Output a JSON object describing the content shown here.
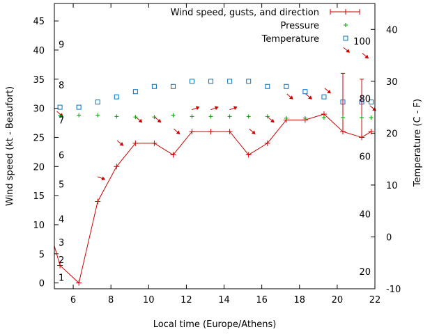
{
  "chart_data": {
    "type": "line",
    "xlabel": "Local time (Europe/Athens)",
    "ylabel_left": "Wind speed (kt - Beaufort)",
    "ylabel_right": "Temperature (C - F)",
    "xlim": [
      5,
      22
    ],
    "ylim_left": [
      -1,
      48
    ],
    "ylim_right": [
      -10,
      45
    ],
    "x_ticks": [
      6,
      8,
      10,
      12,
      14,
      16,
      18,
      20,
      22
    ],
    "y_left_ticks": [
      0,
      5,
      10,
      15,
      20,
      25,
      30,
      35,
      40,
      45
    ],
    "y_right_ticks": [
      -10,
      0,
      10,
      20,
      30,
      40
    ],
    "beaufort_labels": [
      {
        "label": "1",
        "value": 1
      },
      {
        "label": "2",
        "value": 4
      },
      {
        "label": "3",
        "value": 7
      },
      {
        "label": "4",
        "value": 11
      },
      {
        "label": "5",
        "value": 17
      },
      {
        "label": "6",
        "value": 22
      },
      {
        "label": "7",
        "value": 28
      },
      {
        "label": "8",
        "value": 34
      },
      {
        "label": "9",
        "value": 41
      }
    ],
    "fahrenheit_labels": [
      {
        "label": "20",
        "value": 20
      },
      {
        "label": "40",
        "value": 40
      },
      {
        "label": "60",
        "value": 60
      },
      {
        "label": "80",
        "value": 80
      },
      {
        "label": "100",
        "value": 100
      }
    ],
    "legend": [
      {
        "name": "Wind speed, gusts, and direction",
        "color": "#cc0000",
        "marker": "plus-line"
      },
      {
        "name": "Pressure",
        "color": "#00a000",
        "marker": "plus"
      },
      {
        "name": "Temperature",
        "color": "#0070c0",
        "marker": "square"
      }
    ],
    "series": [
      {
        "name": "Wind speed, gusts, and direction",
        "color": "#cc0000",
        "x": [
          4.5,
          5.3,
          6.3,
          7.3,
          8.3,
          9.3,
          10.3,
          11.3,
          12.3,
          13.3,
          14.3,
          15.3,
          16.3,
          17.3,
          18.3,
          19.3,
          20.3,
          21.3,
          21.8
        ],
        "y": [
          12,
          3,
          0,
          14,
          20,
          24,
          24,
          22,
          26,
          26,
          26,
          22,
          24,
          28,
          28,
          29,
          26,
          25,
          26
        ],
        "gusts": [
          {
            "x": 20.3,
            "y": 36
          },
          {
            "x": 21.3,
            "y": 35
          }
        ],
        "arrows": [
          {
            "x": 7.5,
            "y": 18,
            "angle": 20
          },
          {
            "x": 8.5,
            "y": 24,
            "angle": 40
          },
          {
            "x": 9.5,
            "y": 28,
            "angle": 40
          },
          {
            "x": 10.5,
            "y": 28,
            "angle": 40
          },
          {
            "x": 11.5,
            "y": 26,
            "angle": 40
          },
          {
            "x": 12.5,
            "y": 30,
            "angle": -20
          },
          {
            "x": 13.5,
            "y": 30,
            "angle": -20
          },
          {
            "x": 14.5,
            "y": 30,
            "angle": -20
          },
          {
            "x": 15.5,
            "y": 26,
            "angle": 40
          },
          {
            "x": 16.5,
            "y": 28,
            "angle": 40
          },
          {
            "x": 17.5,
            "y": 32,
            "angle": 40
          },
          {
            "x": 18.5,
            "y": 32,
            "angle": 40
          },
          {
            "x": 19.5,
            "y": 33,
            "angle": 40
          },
          {
            "x": 20.5,
            "y": 40,
            "angle": 40
          },
          {
            "x": 21.5,
            "y": 39,
            "angle": 40
          },
          {
            "x": 21.9,
            "y": 30,
            "angle": 40
          },
          {
            "x": 5.3,
            "y": 29,
            "angle": 40
          }
        ]
      },
      {
        "name": "Pressure",
        "color": "#00a000",
        "x": [
          5.3,
          6.3,
          7.3,
          8.3,
          9.3,
          10.3,
          11.3,
          12.3,
          13.3,
          14.3,
          15.3,
          16.3,
          17.3,
          18.3,
          19.3,
          20.3,
          21.3,
          21.8
        ],
        "y": [
          28.7,
          28.8,
          28.8,
          28.6,
          28.5,
          28.5,
          28.8,
          28.6,
          28.6,
          28.6,
          28.6,
          28.6,
          28.3,
          28.3,
          28.4,
          28.4,
          28.4,
          28.4
        ]
      },
      {
        "name": "Temperature",
        "color": "#0070c0",
        "axis": "right",
        "x": [
          5.3,
          6.3,
          7.3,
          8.3,
          9.3,
          10.3,
          11.3,
          12.3,
          13.3,
          14.3,
          15.3,
          16.3,
          17.3,
          18.3,
          19.3,
          20.3,
          21.3,
          21.8
        ],
        "y": [
          25.0,
          25.0,
          26.0,
          27.0,
          28.0,
          29.0,
          29.0,
          30.0,
          30.0,
          30.0,
          30.0,
          29.0,
          29.0,
          28.0,
          27.0,
          26.0,
          26.0,
          26.0
        ]
      }
    ]
  }
}
